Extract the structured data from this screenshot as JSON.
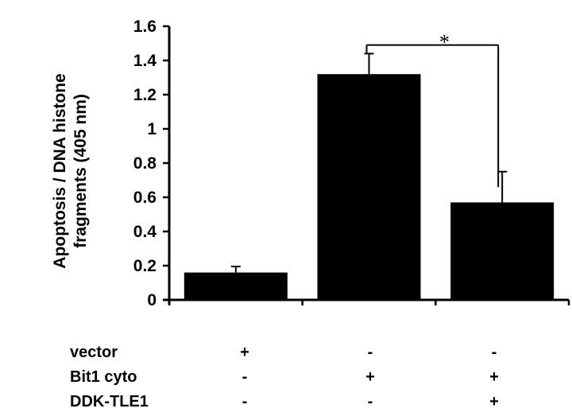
{
  "chart_data": {
    "type": "bar",
    "ylabel_lines": [
      "Apoptosis / DNA histone",
      "fragments (405 nm)"
    ],
    "ylim": [
      0,
      1.6
    ],
    "yticks": [
      "0",
      "0.2",
      "0.4",
      "0.6",
      "0.8",
      "1",
      "1.2",
      "1.4",
      "1.6"
    ],
    "ytick_values": [
      0,
      0.2,
      0.4,
      0.6,
      0.8,
      1.0,
      1.2,
      1.4,
      1.6
    ],
    "values": [
      0.16,
      1.32,
      0.57
    ],
    "errors": [
      0.035,
      0.12,
      0.18
    ],
    "bar_color": "#000000",
    "conditions": [
      {
        "label": "vector",
        "signs": [
          "+",
          "-",
          "-"
        ]
      },
      {
        "label": "Bit1 cyto",
        "signs": [
          "-",
          "+",
          "+"
        ]
      },
      {
        "label": "DDK-TLE1",
        "signs": [
          "-",
          "-",
          "+"
        ]
      }
    ],
    "significance": {
      "between": [
        1,
        2
      ],
      "label": "*"
    }
  }
}
